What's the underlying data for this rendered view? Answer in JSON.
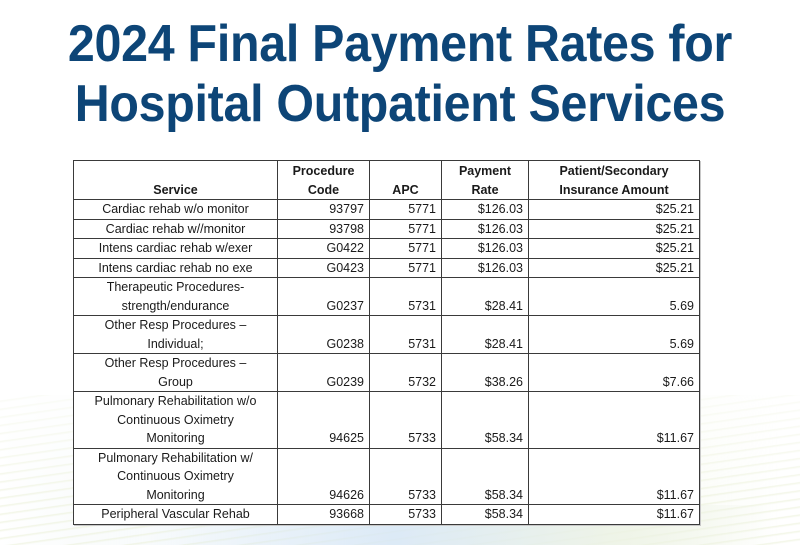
{
  "title": {
    "line1": "2024 Final Payment Rates for",
    "line2": "Hospital Outpatient Services"
  },
  "colors": {
    "title": "#0d4577",
    "table_border": "#3a3a3a",
    "text": "#1a1a1a"
  },
  "table": {
    "headers": [
      {
        "lines": [
          "",
          "Service"
        ]
      },
      {
        "lines": [
          "Procedure",
          "Code"
        ]
      },
      {
        "lines": [
          "",
          "APC"
        ]
      },
      {
        "lines": [
          "Payment",
          "Rate"
        ]
      },
      {
        "lines": [
          "Patient/Secondary",
          "Insurance Amount"
        ]
      }
    ],
    "rows": [
      {
        "service": [
          "Cardiac rehab w/o monitor"
        ],
        "code": "93797",
        "apc": "5771",
        "rate": "$126.03",
        "insurance": "$25.21"
      },
      {
        "service": [
          "Cardiac rehab w//monitor"
        ],
        "code": "93798",
        "apc": "5771",
        "rate": "$126.03",
        "insurance": "$25.21"
      },
      {
        "service": [
          "Intens cardiac rehab w/exer"
        ],
        "code": "G0422",
        "apc": "5771",
        "rate": "$126.03",
        "insurance": "$25.21"
      },
      {
        "service": [
          "Intens cardiac rehab no exe"
        ],
        "code": "G0423",
        "apc": "5771",
        "rate": "$126.03",
        "insurance": "$25.21"
      },
      {
        "service": [
          "Therapeutic Procedures-",
          "strength/endurance"
        ],
        "code": "G0237",
        "apc": "5731",
        "rate": "$28.41",
        "insurance": "5.69"
      },
      {
        "service": [
          "Other Resp Procedures –",
          "Individual;"
        ],
        "code": "G0238",
        "apc": "5731",
        "rate": "$28.41",
        "insurance": "5.69"
      },
      {
        "service": [
          "Other Resp Procedures –",
          "Group"
        ],
        "code": "G0239",
        "apc": "5732",
        "rate": "$38.26",
        "insurance": "$7.66"
      },
      {
        "service": [
          "Pulmonary Rehabilitation w/o",
          "Continuous Oximetry",
          "Monitoring"
        ],
        "code": "94625",
        "apc": "5733",
        "rate": "$58.34",
        "insurance": "$11.67"
      },
      {
        "service": [
          "Pulmonary Rehabilitation w/",
          "Continuous Oximetry",
          "Monitoring"
        ],
        "code": "94626",
        "apc": "5733",
        "rate": "$58.34",
        "insurance": "$11.67"
      },
      {
        "service": [
          "Peripheral Vascular Rehab"
        ],
        "code": "93668",
        "apc": "5733",
        "rate": "$58.34",
        "insurance": "$11.67"
      }
    ]
  }
}
